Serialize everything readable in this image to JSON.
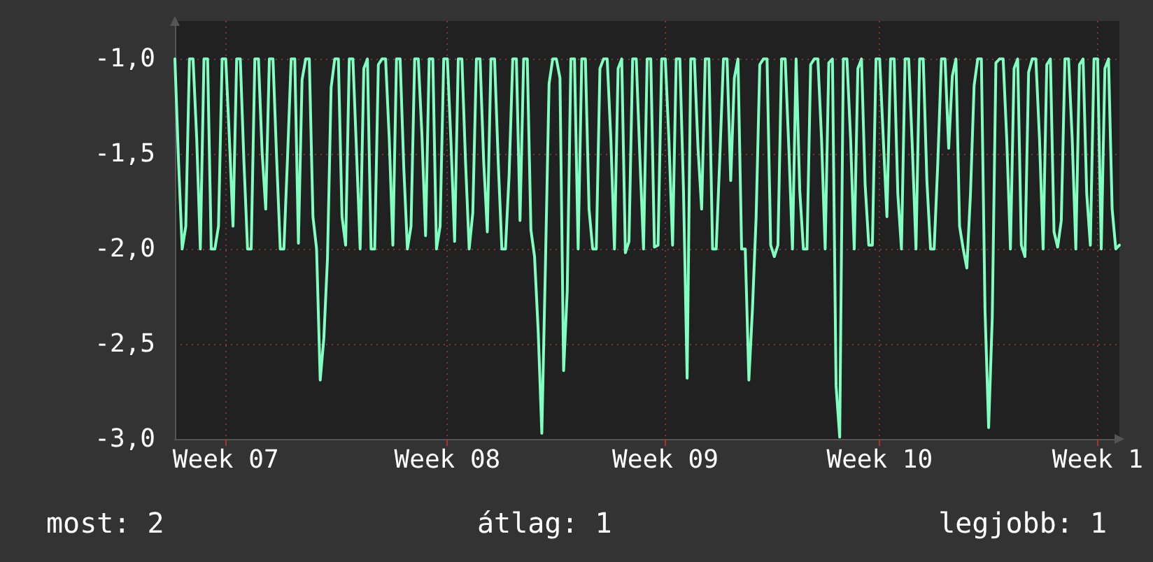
{
  "chart_data": {
    "type": "line",
    "annotations": [
      "most: 2",
      "átlag: 1",
      "legjobb: 1"
    ],
    "categories": [
      null,
      null,
      null,
      null,
      null,
      null,
      null,
      null,
      null,
      null,
      null,
      null,
      null,
      null,
      "Week 07",
      null,
      null,
      null,
      null,
      null,
      null,
      null,
      null,
      null,
      null,
      null,
      null,
      null,
      null,
      null,
      null,
      null,
      null,
      null,
      null,
      null,
      null,
      null,
      null,
      null,
      null,
      null,
      null,
      null,
      null,
      null,
      null,
      null,
      null,
      null,
      null,
      null,
      null,
      null,
      null,
      null,
      null,
      null,
      null,
      null,
      null,
      null,
      null,
      null,
      null,
      null,
      null,
      null,
      null,
      null,
      null,
      null,
      null,
      null,
      null,
      "Week 08",
      null,
      null,
      null,
      null,
      null,
      null,
      null,
      null,
      null,
      null,
      null,
      null,
      null,
      null,
      null,
      null,
      null,
      null,
      null,
      null,
      null,
      null,
      null,
      null,
      null,
      null,
      null,
      null,
      null,
      null,
      null,
      null,
      null,
      null,
      null,
      null,
      null,
      null,
      null,
      null,
      null,
      null,
      null,
      null,
      null,
      null,
      null,
      null,
      null,
      null,
      null,
      null,
      null,
      null,
      null,
      null,
      null,
      null,
      null,
      "Week 09",
      null,
      null,
      null,
      null,
      null,
      null,
      null,
      null,
      null,
      null,
      null,
      null,
      null,
      null,
      null,
      null,
      null,
      null,
      null,
      null,
      null,
      null,
      null,
      null,
      null,
      null,
      null,
      null,
      null,
      null,
      null,
      null,
      null,
      null,
      null,
      null,
      null,
      null,
      null,
      null,
      null,
      null,
      null,
      null,
      null,
      null,
      null,
      null,
      null,
      null,
      null,
      null,
      null,
      null,
      null,
      null,
      null,
      null,
      "Week 10",
      null,
      null,
      null,
      null,
      null,
      null,
      null,
      null,
      null,
      null,
      null,
      null,
      null,
      null,
      null,
      null,
      null,
      null,
      null,
      null,
      null,
      null,
      null,
      null,
      null,
      null,
      null,
      null,
      null,
      null,
      null,
      null,
      null,
      null,
      null,
      null,
      null,
      null,
      null,
      null,
      null,
      null,
      null,
      null,
      null,
      null,
      null,
      null,
      null,
      null,
      null,
      null,
      null,
      null,
      null,
      null,
      null,
      null,
      null,
      "Week 1",
      null,
      null,
      null,
      null,
      null,
      null
    ],
    "ylim": [
      -3,
      -0.8
    ],
    "yticks": [
      {
        "value": -3,
        "label": "-3,0"
      },
      {
        "value": -2.5,
        "label": "-2,5"
      },
      {
        "value": -2,
        "label": "-2,0"
      },
      {
        "value": -1.5,
        "label": "-1,5"
      },
      {
        "value": -1,
        "label": "-1,0"
      }
    ],
    "grid": true,
    "series": [
      {
        "color": "#80ffc0",
        "values": [
          -1,
          -1.54,
          -2,
          -1.88,
          -1,
          -1,
          -1.42,
          -2,
          -1,
          -1,
          -2,
          -2,
          -1.88,
          -1,
          -1,
          -1.42,
          -1.88,
          -1,
          -1,
          -1.54,
          -2,
          -2,
          -1,
          -1,
          -1.49,
          -1.79,
          -1,
          -1,
          -1.52,
          -2,
          -2,
          -1.52,
          -1,
          -1,
          -1.97,
          -1.11,
          -1,
          -1,
          -1.83,
          -2,
          -2.69,
          -2.47,
          -2.05,
          -1.15,
          -1,
          -1,
          -1.83,
          -1.98,
          -1,
          -1,
          -1.49,
          -2,
          -1.05,
          -1,
          -2,
          -2,
          -1.03,
          -1,
          -1,
          -1.42,
          -1.98,
          -1,
          -1,
          -1.57,
          -2,
          -1.88,
          -1,
          -1,
          -1.4,
          -1.93,
          -1,
          -1,
          -2,
          -1.88,
          -1,
          -1,
          -1.44,
          -1.96,
          -1,
          -1,
          -1.54,
          -2,
          -1.81,
          -1,
          -1,
          -1.54,
          -1.91,
          -1,
          -1,
          -1.54,
          -2,
          -2,
          -1.61,
          -1,
          -1,
          -1.85,
          -1,
          -1,
          -1.9,
          -2.04,
          -2.43,
          -2.97,
          -2.08,
          -1.13,
          -1,
          -1,
          -1.1,
          -2.64,
          -2.22,
          -1,
          -1,
          -2,
          -1,
          -1,
          -1.79,
          -2,
          -2,
          -1.05,
          -1,
          -1,
          -1.42,
          -2,
          -1.05,
          -1,
          -2.02,
          -1.96,
          -1,
          -1,
          -1.52,
          -2,
          -1,
          -1,
          -1.99,
          -1.98,
          -1,
          -1,
          -1.43,
          -1.98,
          -1,
          -1,
          -1.69,
          -2.68,
          -1,
          -1,
          -1.47,
          -1.79,
          -1,
          -1,
          -2,
          -2,
          -1.52,
          -1,
          -1,
          -1.64,
          -1.1,
          -1,
          -2,
          -2,
          -2.69,
          -2.31,
          -1.83,
          -1.03,
          -1,
          -1,
          -1.98,
          -2.04,
          -1.98,
          -1,
          -1,
          -1.47,
          -2,
          -1,
          -1.69,
          -2,
          -2,
          -1.03,
          -1,
          -1,
          -1.42,
          -2,
          -1.02,
          -1,
          -2.72,
          -2.99,
          -1,
          -1,
          -1.42,
          -2,
          -1.05,
          -1,
          -1.66,
          -1.98,
          -1.98,
          -1,
          -1,
          -1.42,
          -1.83,
          -1,
          -1,
          -1.71,
          -2,
          -1,
          -1,
          -1.47,
          -2,
          -1,
          -1,
          -1.64,
          -2,
          -2,
          -1.55,
          -1,
          -1,
          -1.47,
          -1.09,
          -1,
          -1.88,
          -2.0,
          -2.1,
          -1.71,
          -1.14,
          -1,
          -1,
          -2.32,
          -2.94,
          -2.36,
          -1.02,
          -1,
          -1,
          -1.43,
          -2,
          -1.05,
          -1,
          -1.98,
          -2.04,
          -1.07,
          -1,
          -1,
          -1.42,
          -2,
          -1.03,
          -1,
          -1.91,
          -1.99,
          -1.85,
          -1,
          -1,
          -1.42,
          -2,
          -1.03,
          -1,
          -1.71,
          -1.98,
          -1,
          -1,
          -2,
          -1.05,
          -1,
          -1.79,
          -2,
          -1.98
        ]
      }
    ]
  }
}
